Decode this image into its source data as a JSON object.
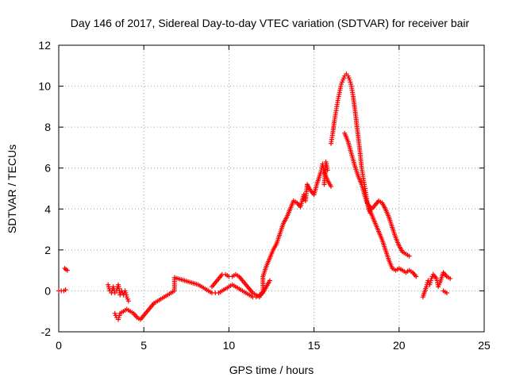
{
  "chart_data": {
    "type": "scatter",
    "title": "Day 146 of 2017, Sidereal Day-to-day VTEC variation (SDTVAR) for receiver bair",
    "xlabel": "GPS time / hours",
    "ylabel": "SDTVAR / TECUs",
    "xlim": [
      0,
      25
    ],
    "ylim": [
      -2,
      12
    ],
    "xticks": [
      0,
      5,
      10,
      15,
      20,
      25
    ],
    "yticks": [
      -2,
      0,
      2,
      4,
      6,
      8,
      10,
      12
    ],
    "grid": true,
    "marker": "+",
    "color": "#ff0000",
    "series": [
      {
        "name": "receiver bair",
        "points": [
          [
            0.0,
            0.0
          ],
          [
            0.15,
            0.0
          ],
          [
            0.3,
            0.0
          ],
          [
            0.4,
            0.05
          ],
          [
            0.35,
            1.1
          ],
          [
            0.42,
            1.05
          ],
          [
            0.5,
            1.0
          ],
          [
            2.9,
            0.3
          ],
          [
            3.0,
            0.0
          ],
          [
            3.1,
            -0.1
          ],
          [
            3.2,
            0.2
          ],
          [
            3.3,
            -0.1
          ],
          [
            3.4,
            0.0
          ],
          [
            3.5,
            0.3
          ],
          [
            3.6,
            -0.2
          ],
          [
            3.7,
            0.0
          ],
          [
            3.8,
            -0.2
          ],
          [
            3.9,
            0.0
          ],
          [
            4.0,
            -0.3
          ],
          [
            4.1,
            -0.5
          ],
          [
            3.3,
            -1.1
          ],
          [
            3.4,
            -1.3
          ],
          [
            3.5,
            -1.4
          ],
          [
            3.6,
            -1.1
          ],
          [
            3.8,
            -1.0
          ],
          [
            4.0,
            -0.9
          ],
          [
            4.2,
            -1.0
          ],
          [
            4.4,
            -1.1
          ],
          [
            4.6,
            -1.3
          ],
          [
            4.8,
            -1.4
          ],
          [
            5.0,
            -1.2
          ],
          [
            5.2,
            -1.0
          ],
          [
            5.4,
            -0.8
          ],
          [
            5.6,
            -0.6
          ],
          [
            5.8,
            -0.5
          ],
          [
            6.0,
            -0.4
          ],
          [
            6.2,
            -0.3
          ],
          [
            6.4,
            -0.2
          ],
          [
            6.6,
            -0.1
          ],
          [
            6.8,
            0.0
          ],
          [
            6.8,
            0.65
          ],
          [
            7.0,
            0.6
          ],
          [
            7.2,
            0.55
          ],
          [
            7.4,
            0.5
          ],
          [
            7.6,
            0.45
          ],
          [
            7.8,
            0.4
          ],
          [
            8.0,
            0.35
          ],
          [
            8.2,
            0.3
          ],
          [
            8.4,
            0.2
          ],
          [
            8.6,
            0.1
          ],
          [
            8.8,
            0.0
          ],
          [
            9.0,
            -0.1
          ],
          [
            9.2,
            -0.1
          ],
          [
            9.4,
            -0.1
          ],
          [
            9.6,
            0.0
          ],
          [
            9.8,
            0.1
          ],
          [
            10.0,
            0.2
          ],
          [
            10.2,
            0.3
          ],
          [
            10.4,
            0.2
          ],
          [
            10.6,
            0.1
          ],
          [
            10.8,
            0.0
          ],
          [
            11.0,
            -0.1
          ],
          [
            11.2,
            -0.2
          ],
          [
            11.4,
            -0.3
          ],
          [
            11.6,
            -0.3
          ],
          [
            11.8,
            -0.2
          ],
          [
            12.0,
            -0.1
          ],
          [
            12.2,
            0.2
          ],
          [
            12.4,
            0.5
          ],
          [
            9.0,
            0.2
          ],
          [
            9.2,
            0.4
          ],
          [
            9.4,
            0.6
          ],
          [
            9.6,
            0.8
          ],
          [
            9.8,
            0.8
          ],
          [
            10.0,
            0.7
          ],
          [
            10.2,
            0.7
          ],
          [
            10.4,
            0.8
          ],
          [
            10.6,
            0.7
          ],
          [
            10.8,
            0.5
          ],
          [
            11.0,
            0.3
          ],
          [
            11.2,
            0.1
          ],
          [
            11.4,
            -0.1
          ],
          [
            11.6,
            -0.2
          ],
          [
            11.8,
            -0.3
          ],
          [
            12.0,
            0.0
          ],
          [
            12.0,
            0.7
          ],
          [
            12.2,
            1.2
          ],
          [
            12.4,
            1.6
          ],
          [
            12.6,
            2.0
          ],
          [
            12.8,
            2.3
          ],
          [
            13.0,
            2.8
          ],
          [
            13.2,
            3.3
          ],
          [
            13.4,
            3.6
          ],
          [
            13.6,
            4.0
          ],
          [
            13.8,
            4.4
          ],
          [
            14.0,
            4.3
          ],
          [
            14.2,
            4.1
          ],
          [
            14.4,
            4.7
          ],
          [
            14.5,
            4.4
          ],
          [
            14.6,
            5.2
          ],
          [
            14.8,
            4.9
          ],
          [
            15.0,
            4.7
          ],
          [
            15.2,
            5.3
          ],
          [
            15.4,
            5.8
          ],
          [
            15.5,
            6.2
          ],
          [
            15.6,
            5.8
          ],
          [
            15.8,
            5.4
          ],
          [
            16.0,
            5.1
          ],
          [
            15.6,
            5.2
          ],
          [
            15.7,
            6.3
          ],
          [
            15.8,
            5.9
          ],
          [
            16.0,
            7.2
          ],
          [
            16.1,
            7.7
          ],
          [
            16.2,
            8.3
          ],
          [
            16.3,
            8.8
          ],
          [
            16.4,
            9.3
          ],
          [
            16.5,
            9.7
          ],
          [
            16.6,
            10.1
          ],
          [
            16.7,
            10.3
          ],
          [
            16.8,
            10.5
          ],
          [
            16.9,
            10.6
          ],
          [
            17.0,
            10.5
          ],
          [
            17.1,
            10.3
          ],
          [
            17.2,
            10.0
          ],
          [
            17.3,
            9.5
          ],
          [
            17.4,
            8.9
          ],
          [
            17.5,
            8.2
          ],
          [
            17.6,
            7.5
          ],
          [
            17.7,
            6.8
          ],
          [
            17.8,
            6.0
          ],
          [
            17.9,
            5.5
          ],
          [
            18.0,
            5.0
          ],
          [
            18.1,
            4.5
          ],
          [
            18.2,
            4.0
          ],
          [
            18.3,
            3.8
          ],
          [
            16.8,
            7.7
          ],
          [
            17.0,
            7.3
          ],
          [
            17.2,
            6.7
          ],
          [
            17.4,
            6.1
          ],
          [
            17.6,
            5.6
          ],
          [
            17.8,
            5.2
          ],
          [
            18.0,
            4.6
          ],
          [
            18.2,
            4.1
          ],
          [
            18.4,
            3.7
          ],
          [
            18.6,
            3.3
          ],
          [
            18.8,
            2.9
          ],
          [
            19.0,
            2.5
          ],
          [
            19.2,
            2.0
          ],
          [
            19.4,
            1.5
          ],
          [
            19.6,
            1.1
          ],
          [
            19.8,
            1.0
          ],
          [
            20.0,
            1.1
          ],
          [
            20.2,
            1.0
          ],
          [
            20.4,
            0.9
          ],
          [
            20.6,
            1.0
          ],
          [
            20.8,
            0.9
          ],
          [
            21.0,
            0.7
          ],
          [
            18.2,
            4.2
          ],
          [
            18.4,
            4.0
          ],
          [
            18.6,
            4.2
          ],
          [
            18.8,
            4.4
          ],
          [
            19.0,
            4.3
          ],
          [
            19.2,
            4.0
          ],
          [
            19.4,
            3.6
          ],
          [
            19.6,
            3.1
          ],
          [
            19.8,
            2.6
          ],
          [
            20.0,
            2.2
          ],
          [
            20.2,
            1.9
          ],
          [
            20.4,
            1.8
          ],
          [
            20.6,
            1.7
          ],
          [
            21.4,
            -0.3
          ],
          [
            21.6,
            0.2
          ],
          [
            21.7,
            0.5
          ],
          [
            21.8,
            0.3
          ],
          [
            21.9,
            0.6
          ],
          [
            22.0,
            0.8
          ],
          [
            22.2,
            0.6
          ],
          [
            22.3,
            0.2
          ],
          [
            22.4,
            0.4
          ],
          [
            22.6,
            0.9
          ],
          [
            22.8,
            0.7
          ],
          [
            23.0,
            0.6
          ],
          [
            22.6,
            0.0
          ],
          [
            22.8,
            -0.1
          ]
        ]
      }
    ]
  }
}
